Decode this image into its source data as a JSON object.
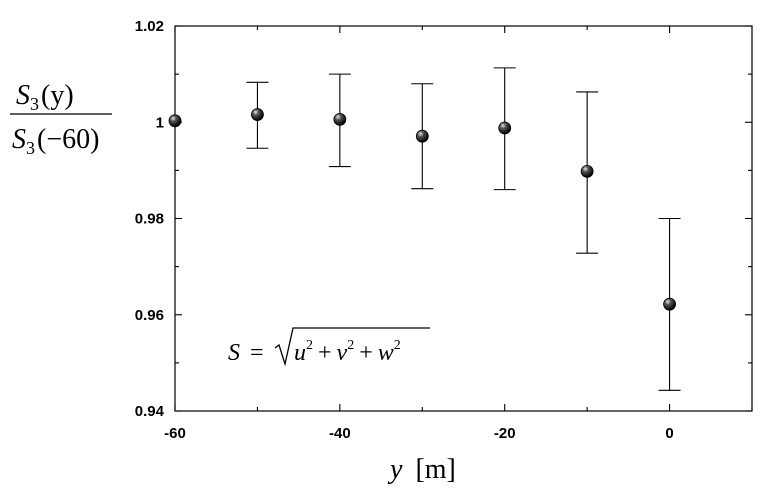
{
  "chart_data": {
    "type": "scatter",
    "x": [
      -60,
      -50,
      -40,
      -30,
      -20,
      -10,
      0
    ],
    "y": [
      1.0003,
      1.0016,
      1.0006,
      0.9971,
      0.9988,
      0.9898,
      0.9622
    ],
    "y_low": [
      null,
      0.9946,
      0.9908,
      0.9862,
      0.986,
      0.9728,
      0.9443
    ],
    "y_high": [
      null,
      1.0083,
      1.01,
      1.008,
      1.0113,
      1.0063,
      0.98
    ],
    "xlim": [
      -60,
      10
    ],
    "ylim": [
      0.94,
      1.02
    ],
    "xticks": [
      "-60",
      "-40",
      "-20",
      "0"
    ],
    "yticks": [
      "0.94",
      "0.96",
      "0.98",
      "1",
      "1.02"
    ],
    "xlabel_var": "y",
    "xlabel_unit": "[m]",
    "ylabel": {
      "num_sym": "S",
      "num_sub": "3",
      "num_arg": "(y)",
      "den_sym": "S",
      "den_sub": "3",
      "den_arg": "(−60)"
    },
    "annotation": {
      "lhs": "S",
      "eq": "=",
      "u": "u",
      "v": "v",
      "w": "w",
      "sup": "2",
      "plus": "+"
    },
    "grid": false,
    "legend": "none",
    "marker_color": "#000000"
  }
}
